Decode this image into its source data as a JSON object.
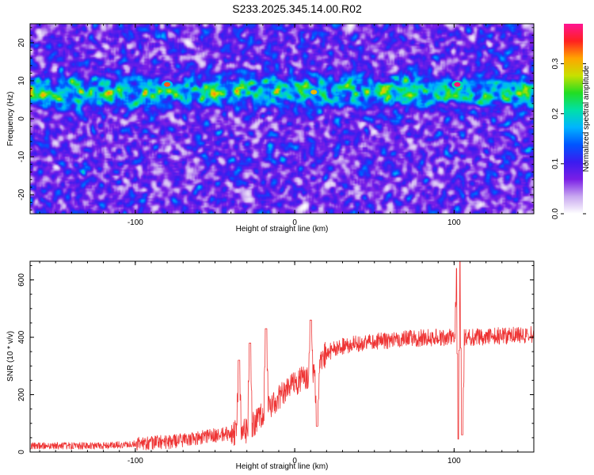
{
  "title": "S233.2025.345.14.00.R02",
  "colors": {
    "snr_line": "#ee3333",
    "colormap": [
      "#ffffff",
      "#c8a8f0",
      "#7a1ee6",
      "#3a1cf0",
      "#0055ff",
      "#00b4ff",
      "#00e0a8",
      "#22dd22",
      "#c8e000",
      "#ffa500",
      "#ff2020",
      "#ff1493"
    ]
  },
  "chart_data": [
    {
      "type": "heatmap",
      "title": "S233.2025.345.14.00.R02",
      "xlabel": "Height of straight line (km)",
      "ylabel": "Frequency (Hz)",
      "xlim": [
        -166,
        150
      ],
      "ylim": [
        -25,
        25
      ],
      "xticks": [
        "-100",
        "0",
        "100"
      ],
      "yticks": [
        "-20",
        "-10",
        "0",
        "10",
        "20"
      ],
      "band_center_hz": 7,
      "band_halfwidth_hz": 3.5,
      "hotspots": [
        {
          "x": -80,
          "y": 9,
          "value": 0.33
        },
        {
          "x": 12,
          "y": 7,
          "value": 0.3
        },
        {
          "x": 102,
          "y": 9,
          "value": 0.37
        }
      ],
      "colorbar": {
        "label": "Normalized spectral amplitude",
        "range": [
          0,
          0.38
        ],
        "ticks": [
          "0.0",
          "0.1",
          "0.2",
          "0.3"
        ]
      }
    },
    {
      "type": "line",
      "xlabel": "Height of straight line (km)",
      "ylabel": "SNR (10 * v/v)",
      "xlim": [
        -166,
        150
      ],
      "ylim": [
        0,
        665
      ],
      "xticks": [
        "-100",
        "0",
        "100"
      ],
      "yticks": [
        "0",
        "200",
        "400",
        "600"
      ],
      "grid": false,
      "trend": {
        "x": [
          -166,
          -120,
          -100,
          -80,
          -60,
          -40,
          -30,
          -20,
          -10,
          0,
          10,
          20,
          30,
          50,
          70,
          90,
          110,
          130,
          150
        ],
        "y": [
          22,
          22,
          28,
          35,
          50,
          65,
          75,
          130,
          190,
          240,
          270,
          345,
          370,
          385,
          395,
          400,
          400,
          405,
          410
        ]
      },
      "noise": [
        {
          "x": [
            -166,
            -100
          ],
          "amplitude": 12
        },
        {
          "x": [
            -100,
            -40
          ],
          "amplitude": 25
        },
        {
          "x": [
            -40,
            20
          ],
          "amplitude": 45
        },
        {
          "x": [
            20,
            150
          ],
          "amplitude": 30
        }
      ],
      "spikes": [
        {
          "x": -35,
          "y": 320
        },
        {
          "x": -28,
          "y": 380
        },
        {
          "x": -18,
          "y": 430
        },
        {
          "x": 10,
          "y": 460
        },
        {
          "x": 14,
          "y": 90
        },
        {
          "x": 102,
          "y": 640
        },
        {
          "x": 103,
          "y": 45
        },
        {
          "x": 104,
          "y": 665
        },
        {
          "x": 105,
          "y": 60
        }
      ]
    }
  ]
}
